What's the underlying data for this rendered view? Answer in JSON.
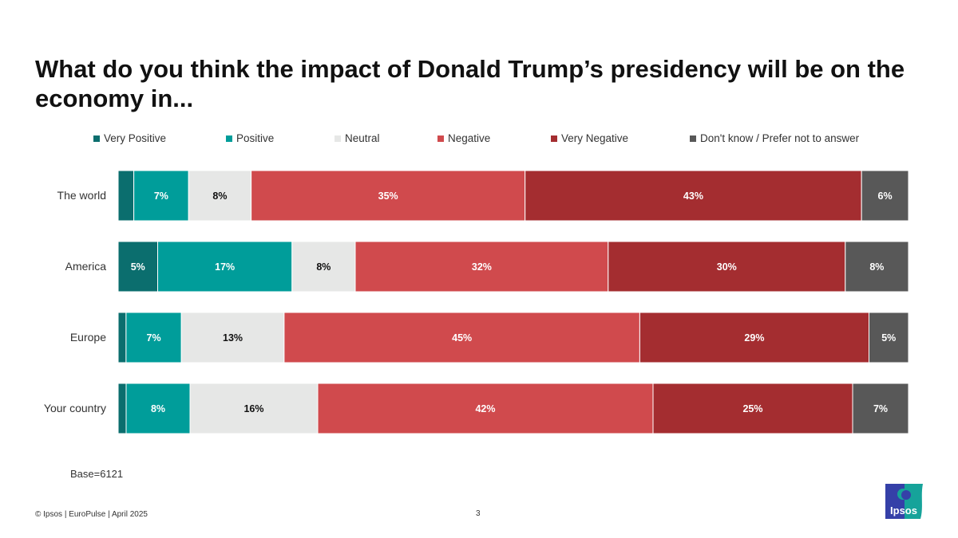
{
  "title": "What do you think the impact of Donald Trump’s presidency will be on the economy in...",
  "base_note": "Base=6121",
  "footer": "© Ipsos | EuroPulse | April 2025",
  "page_number": "3",
  "logo_text": "Ipsos",
  "chart_data": {
    "type": "bar",
    "orientation": "horizontal-stacked-100",
    "title": "What do you think the impact of Donald Trump’s presidency will be on the economy in...",
    "xlabel": "",
    "ylabel": "",
    "xlim": [
      0,
      100
    ],
    "grid": false,
    "legend_position": "top",
    "categories": [
      "The world",
      "America",
      "Europe",
      "Your country"
    ],
    "series": [
      {
        "name": "Very Positive",
        "color": "#0b6e6e",
        "values": [
          2,
          5,
          1,
          1
        ],
        "labels": [
          "",
          "5%",
          "",
          ""
        ],
        "label_color": "#ffffff"
      },
      {
        "name": "Positive",
        "color": "#009d9a",
        "values": [
          7,
          17,
          7,
          8
        ],
        "labels": [
          "7%",
          "17%",
          "7%",
          "8%"
        ],
        "label_color": "#ffffff"
      },
      {
        "name": "Neutral",
        "color": "#e6e7e6",
        "values": [
          8,
          8,
          13,
          16
        ],
        "labels": [
          "8%",
          "8%",
          "13%",
          "16%"
        ],
        "label_color": "#111111"
      },
      {
        "name": "Negative",
        "color": "#d04a4d",
        "values": [
          35,
          32,
          45,
          42
        ],
        "labels": [
          "35%",
          "32%",
          "45%",
          "42%"
        ],
        "label_color": "#ffffff"
      },
      {
        "name": "Very Negative",
        "color": "#a42d30",
        "values": [
          43,
          30,
          29,
          25
        ],
        "labels": [
          "43%",
          "30%",
          "29%",
          "25%"
        ],
        "label_color": "#ffffff"
      },
      {
        "name": "Don't know / Prefer not to answer",
        "color": "#585858",
        "values": [
          6,
          8,
          5,
          7
        ],
        "labels": [
          "6%",
          "8%",
          "5%",
          "7%"
        ],
        "label_color": "#ffffff"
      }
    ]
  }
}
